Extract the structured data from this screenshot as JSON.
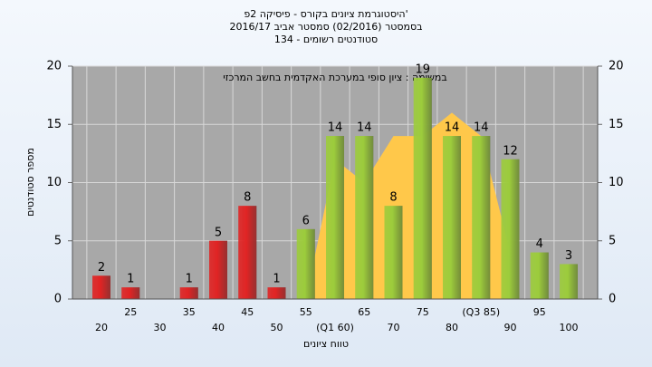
{
  "chart_data": {
    "type": "bar",
    "title": [
      "היסטוגרמת ציונים בקורס - פיסיקה 2פ'",
      "בסמסטר (02/2016) סמסטר אביב 2016/17",
      "סטודנטים רשומים - 134"
    ],
    "annotation": "במשימה : ציון סופי במערכת האקדמית בחשב המרכזי",
    "x_label": "טווח ציונים",
    "y_label": "מספר סטודנטים",
    "categories": [
      "20",
      "25",
      "30",
      "35",
      "40",
      "45",
      "50",
      "55",
      "(Q1 60)",
      "65",
      "70",
      "75",
      "80",
      "(Q3 85)",
      "90",
      "95",
      "100"
    ],
    "series": [
      {
        "color": "#e02424",
        "values": [
          2,
          1,
          null,
          1,
          5,
          8,
          1,
          null,
          null,
          null,
          null,
          null,
          null,
          null,
          null,
          null,
          null
        ]
      },
      {
        "color": "#9ccc3c",
        "values": [
          null,
          null,
          null,
          null,
          null,
          null,
          null,
          6,
          14,
          14,
          8,
          19,
          14,
          14,
          12,
          4,
          3
        ]
      }
    ],
    "area": {
      "color": "#ffc84a",
      "values": [
        null,
        null,
        null,
        null,
        null,
        null,
        null,
        0,
        12,
        10,
        14,
        14,
        16,
        14,
        4,
        null,
        null
      ]
    },
    "ylim": [
      0,
      20
    ],
    "yticks": [
      0,
      5,
      10,
      15,
      20
    ],
    "y2lim": [
      0,
      20
    ],
    "y2ticks": [
      0,
      5,
      10,
      15,
      20
    ],
    "grid": true
  }
}
